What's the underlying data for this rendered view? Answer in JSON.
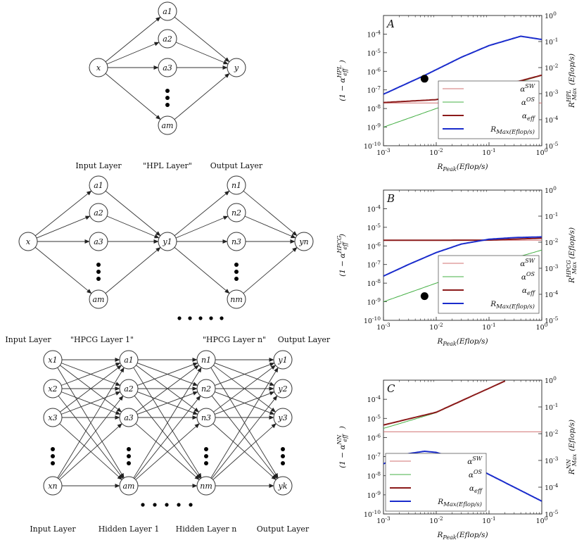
{
  "diagram1": {
    "input": "x",
    "hidden": [
      "a1",
      "a2",
      "a3",
      "am"
    ],
    "output": "y"
  },
  "diagram2": {
    "titles": [
      "Input Layer",
      "\"HPL Layer\"",
      "Output Layer"
    ],
    "input": "x",
    "hidden_a": [
      "a1",
      "a2",
      "a3",
      "am"
    ],
    "center": "y1",
    "hidden_n": [
      "n1",
      "n2",
      "n3",
      "nm"
    ],
    "output": "yn"
  },
  "diagram3": {
    "titles": [
      "Input Layer",
      "\"HPCG Layer 1\"",
      "\"HPCG Layer n\"",
      "Output Layer"
    ],
    "bottom_labels": [
      "Input Layer",
      "Hidden Layer 1",
      "Hidden Layer n",
      "Output Layer"
    ],
    "col_x": [
      "x1",
      "x2",
      "x3",
      "xn"
    ],
    "col_a": [
      "a1",
      "a2",
      "a3",
      "am"
    ],
    "col_n": [
      "n1",
      "n2",
      "n3",
      "nm"
    ],
    "col_y": [
      "y1",
      "y2",
      "y3",
      "yk"
    ]
  },
  "chart_data": [
    {
      "type": "line",
      "panel": "A",
      "xlabel": "R_Peak(Eflop/s)",
      "ylabel": "(1 − α_eff^HPL)",
      "ylabel_right": "R_Max^HPL(Eflop/s)",
      "xscale": "log",
      "xlim": [
        0.001,
        1
      ],
      "ylim_left": [
        1e-10,
        0.001
      ],
      "ylim_right": [
        1e-05,
        1
      ],
      "left_ticks": [
        "10^-10",
        "10^-9",
        "10^-8",
        "10^-7",
        "10^-6",
        "10^-5",
        "10^-4"
      ],
      "right_ticks": [
        "10^-5",
        "10^-4",
        "10^-3",
        "10^-2",
        "10^-1",
        "10^0"
      ],
      "x_ticks": [
        "10^-3",
        "10^-2",
        "10^-1",
        "10^0"
      ],
      "series": [
        {
          "name": "α^SW",
          "color": "#d07070",
          "axis": "left",
          "x": [
            0.001,
            1
          ],
          "y": [
            2e-08,
            2e-08
          ]
        },
        {
          "name": "α^OS",
          "color": "#45b045",
          "axis": "left",
          "x": [
            0.001,
            0.01,
            0.1,
            1
          ],
          "y": [
            1e-09,
            1e-08,
            9e-08,
            6e-07
          ]
        },
        {
          "name": "α_eff",
          "color": "#8b1a1a",
          "axis": "left",
          "x": [
            0.001,
            0.01,
            0.1,
            1
          ],
          "y": [
            2.1e-08,
            3e-08,
            1.1e-07,
            6.2e-07
          ]
        },
        {
          "name": "R_Max(Eflop/s)",
          "color": "#1a2ccc",
          "axis": "right",
          "x": [
            0.001,
            0.006,
            0.03,
            0.1,
            0.4,
            1
          ],
          "y": [
            0.00095,
            0.005,
            0.025,
            0.07,
            0.16,
            0.12
          ]
        }
      ],
      "marker": {
        "x": 0.006,
        "y": 4e-07
      }
    },
    {
      "type": "line",
      "panel": "B",
      "xlabel": "R_Peak(Eflop/s)",
      "ylabel": "(1 − α_eff^HPCG)",
      "ylabel_right": "R_Max^HPCG(Eflop/s)",
      "xscale": "log",
      "xlim": [
        0.001,
        1
      ],
      "ylim_left": [
        1e-10,
        0.001
      ],
      "ylim_right": [
        1e-05,
        1
      ],
      "left_ticks": [
        "10^-10",
        "10^-9",
        "10^-8",
        "10^-7",
        "10^-6",
        "10^-5",
        "10^-4"
      ],
      "right_ticks": [
        "10^-5",
        "10^-4",
        "10^-3",
        "10^-2",
        "10^-1",
        "10^0"
      ],
      "x_ticks": [
        "10^-3",
        "10^-2",
        "10^-1",
        "10^0"
      ],
      "series": [
        {
          "name": "α^SW",
          "color": "#d07070",
          "axis": "left",
          "x": [
            0.001,
            1
          ],
          "y": [
            2e-06,
            2e-06
          ]
        },
        {
          "name": "α^OS",
          "color": "#45b045",
          "axis": "left",
          "x": [
            0.001,
            0.01,
            0.1,
            1
          ],
          "y": [
            1e-09,
            1e-08,
            9e-08,
            6e-07
          ]
        },
        {
          "name": "α_eff",
          "color": "#8b1a1a",
          "axis": "left",
          "x": [
            0.001,
            0.1,
            1
          ],
          "y": [
            2e-06,
            2.05e-06,
            2.6e-06
          ]
        },
        {
          "name": "R_Max(Eflop/s)",
          "color": "#1a2ccc",
          "axis": "right",
          "x": [
            0.001,
            0.003,
            0.01,
            0.03,
            0.1,
            0.3,
            1
          ],
          "y": [
            0.0005,
            0.0014,
            0.004,
            0.0085,
            0.013,
            0.015,
            0.016
          ]
        }
      ],
      "marker": {
        "x": 0.006,
        "y": 2e-09
      }
    },
    {
      "type": "line",
      "panel": "C",
      "xlabel": "R_Peak(Eflop/s)",
      "ylabel": "(1 − α_eff^NN)",
      "ylabel_right": "R_Max^NN(Eflop/s)",
      "xscale": "log",
      "xlim": [
        0.001,
        1
      ],
      "ylim_left": [
        1e-10,
        0.001
      ],
      "ylim_right": [
        1e-05,
        1
      ],
      "left_ticks": [
        "10^-10",
        "10^-9",
        "10^-8",
        "10^-7",
        "10^-6",
        "10^-5",
        "10^-4"
      ],
      "right_ticks": [
        "10^-5",
        "10^-4",
        "10^-3",
        "10^-2",
        "10^-1",
        "10^0"
      ],
      "x_ticks": [
        "10^-3",
        "10^-2",
        "10^-1",
        "10^0"
      ],
      "series": [
        {
          "name": "α^SW",
          "color": "#d07070",
          "axis": "left",
          "x": [
            0.001,
            1
          ],
          "y": [
            2e-06,
            2e-06
          ]
        },
        {
          "name": "α^OS",
          "color": "#45b045",
          "axis": "left",
          "x": [
            0.001,
            0.01,
            0.2
          ],
          "y": [
            3e-06,
            2e-05,
            0.0009
          ]
        },
        {
          "name": "α_eff",
          "color": "#8b1a1a",
          "axis": "left",
          "x": [
            0.001,
            0.01,
            0.2
          ],
          "y": [
            4.5e-06,
            2.1e-05,
            0.0009
          ]
        },
        {
          "name": "R_Max(Eflop/s)",
          "color": "#1a2ccc",
          "axis": "right",
          "x": [
            0.001,
            0.003,
            0.006,
            0.01,
            0.03,
            0.1,
            0.3,
            1
          ],
          "y": [
            0.00075,
            0.0018,
            0.0022,
            0.002,
            0.001,
            0.0003,
            0.0001,
            3e-05
          ]
        }
      ]
    }
  ]
}
